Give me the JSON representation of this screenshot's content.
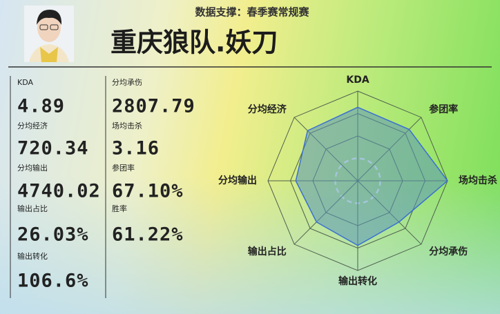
{
  "header": {
    "subtitle": "数据支撑：春季赛常规赛",
    "title": "重庆狼队.妖刀"
  },
  "stats": {
    "left": [
      {
        "label": "KDA",
        "value": "4.89"
      },
      {
        "label": "分均经济",
        "value": "720.34"
      },
      {
        "label": "分均输出",
        "value": "4740.02"
      },
      {
        "label": "输出占比",
        "value": "26.03%"
      },
      {
        "label": "输出转化",
        "value": "106.6%"
      }
    ],
    "right": [
      {
        "label": "分均承伤",
        "value": "2807.79"
      },
      {
        "label": "场均击杀",
        "value": "3.16"
      },
      {
        "label": "参团率",
        "value": "67.10%"
      },
      {
        "label": "胜率",
        "value": "61.22%"
      }
    ]
  },
  "chart_data": {
    "type": "radar",
    "categories": [
      "KDA",
      "参团率",
      "场均击杀",
      "分均承伤",
      "输出转化",
      "输出占比",
      "分均输出",
      "分均经济"
    ],
    "values": [
      0.82,
      0.81,
      1.0,
      0.65,
      0.72,
      0.65,
      0.69,
      0.79
    ],
    "rlim": [
      0,
      1
    ],
    "rticks": [
      0.25,
      0.5,
      0.75,
      1
    ],
    "color": "#3b6fd1",
    "fill": "rgba(90,150,185,0.55)"
  }
}
